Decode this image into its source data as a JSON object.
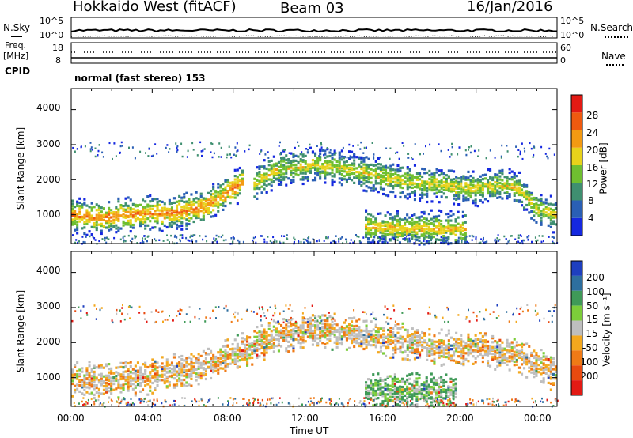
{
  "header": {
    "station": "Hokkaido West (fitACF)",
    "beam": "Beam 03",
    "date": "16/Jan/2016"
  },
  "top_panels": {
    "nsky_label": "N.Sky",
    "nsearch_label": "N.Search",
    "freq_label_1": "Freq.",
    "freq_label_2": "[MHz]",
    "nave_label": "Nave",
    "cpid_label": "CPID",
    "left_ticks_noise": [
      "10^5",
      "10^0"
    ],
    "right_ticks_noise": [
      "10^5",
      "10^0"
    ],
    "left_ticks_freq": [
      "18",
      "8"
    ],
    "right_ticks_nave": [
      "60",
      "0"
    ],
    "cpid_text": "normal (fast stereo) 153"
  },
  "axes": {
    "ylabel": "Slant Range [km]",
    "yticks": [
      "1000",
      "2000",
      "3000",
      "4000"
    ],
    "xticks": [
      "00:00",
      "04:00",
      "08:00",
      "12:00",
      "16:00",
      "20:00",
      "00:00"
    ],
    "xlabel": "Time UT"
  },
  "power_scale": {
    "label": "Power [dB]",
    "tick_labels": [
      "4",
      "8",
      "12",
      "16",
      "20",
      "24",
      "28"
    ],
    "colors": [
      "#1528e0",
      "#2a5fb5",
      "#3f8f70",
      "#6fbf30",
      "#e8d21a",
      "#f39a12",
      "#ef5a10",
      "#e31a14"
    ]
  },
  "velocity_scale": {
    "label": "Velocity [m s⁻¹]",
    "tick_labels": [
      "200",
      "100",
      "50",
      "15",
      "-15",
      "-50",
      "-100",
      "-200"
    ],
    "colors": [
      "#1e3fbf",
      "#2e6f9f",
      "#3f9a58",
      "#7ccd3a",
      "#bebebe",
      "#f3a81e",
      "#ef7a16",
      "#e84a10",
      "#e31a14"
    ]
  },
  "chart_data": {
    "type": "heatmap",
    "x_range_ut_hours": [
      0,
      24
    ],
    "y_range_km": [
      180,
      4600
    ],
    "panels": [
      {
        "name": "Power",
        "bands": [
          {
            "t": [
              0,
              1.5,
              3,
              5,
              6.5,
              7.5,
              8.5
            ],
            "center_km": [
              1000,
              950,
              1050,
              1100,
              1250,
              1600,
              2000
            ],
            "core_db": 24
          },
          {
            "t": [
              9,
              10,
              11,
              12,
              13,
              14,
              15,
              16,
              17,
              18,
              19,
              20,
              21,
              22,
              23,
              24
            ],
            "center_km": [
              1900,
              2300,
              2400,
              2450,
              2400,
              2300,
              2150,
              2050,
              1950,
              1900,
              1850,
              1800,
              1900,
              1800,
              1200,
              1000
            ],
            "core_db": 18
          },
          {
            "t": [
              14.5,
              15.5,
              16.5,
              17.5,
              18.5,
              19.5
            ],
            "center_km": [
              700,
              650,
              620,
              650,
              650,
              600
            ],
            "core_db": 20
          }
        ]
      },
      {
        "name": "Velocity",
        "bands": [
          {
            "t": [
              0,
              2,
              4,
              6,
              8,
              10,
              12,
              14,
              16,
              18,
              20,
              22,
              24
            ],
            "center_km": [
              1000,
              950,
              1100,
              1300,
              1700,
              2200,
              2400,
              2300,
              2100,
              1900,
              1850,
              1700,
              1100
            ],
            "dominant_ms": -10
          },
          {
            "t": [
              14.5,
              16,
              17.5,
              19
            ],
            "center_km": [
              700,
              650,
              650,
              600
            ],
            "dominant_ms": 30
          }
        ]
      }
    ]
  }
}
